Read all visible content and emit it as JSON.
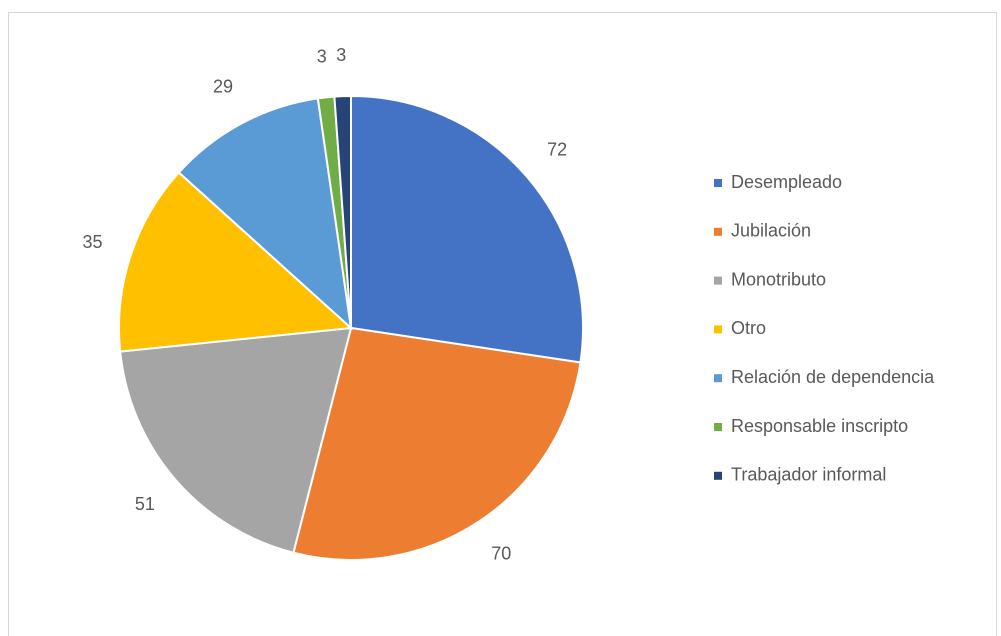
{
  "chart_data": {
    "type": "pie",
    "categories": [
      "Desempleado",
      "Jubilación",
      "Monotributo",
      "Otro",
      "Relación de dependencia",
      "Responsable inscripto",
      "Trabajador informal"
    ],
    "values": [
      72,
      70,
      51,
      35,
      29,
      3,
      3
    ],
    "colors": [
      "#4472c4",
      "#ed7d31",
      "#a5a5a5",
      "#ffc000",
      "#5b9bd5",
      "#70ad47",
      "#264478"
    ],
    "legend": "right"
  }
}
